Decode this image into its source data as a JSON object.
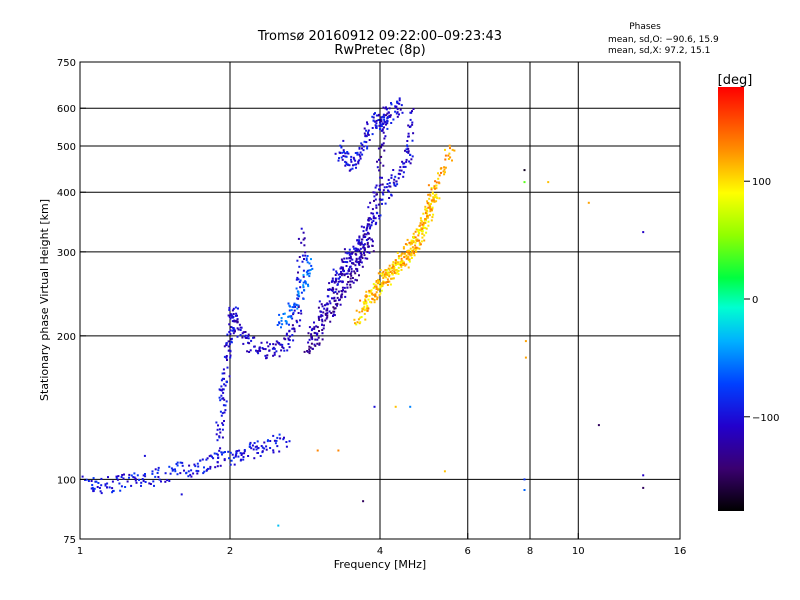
{
  "title_line1": "Tromsø 20160912 09:22:00–09:23:43",
  "title_line2": "RwPretec (8p)",
  "phases": {
    "heading": "Phases",
    "line_o": "mean, sd,O: −90.6, 15.9",
    "line_x": "mean, sd,X:  97.2, 15.1"
  },
  "colorbar": {
    "label": "[deg]",
    "ticks": [
      "100",
      "0",
      "−100"
    ],
    "range": [
      -180,
      180
    ]
  },
  "chart_data": {
    "type": "scatter",
    "xlabel": "Frequency [MHz]",
    "ylabel": "Stationary phase Virtual Height [km]",
    "xscale": "log2",
    "yscale": "log",
    "xlim": [
      1,
      16
    ],
    "ylim": [
      75,
      750
    ],
    "x_ticks": [
      1,
      2,
      4,
      6,
      8,
      10,
      16
    ],
    "x_tick_labels": [
      "1",
      "2",
      "4",
      "6",
      "8",
      "10",
      "16"
    ],
    "y_ticks": [
      75,
      100,
      200,
      300,
      400,
      500,
      600,
      750
    ],
    "y_tick_labels": [
      "75",
      "100",
      "200",
      "300",
      "400",
      "500",
      "600",
      "750"
    ],
    "grid": true,
    "vertical_gridlines": [
      2,
      4,
      6,
      8,
      10
    ],
    "horizontal_gridlines": [
      100,
      200,
      300,
      400,
      500,
      600
    ],
    "color_by": "phase [deg]",
    "traces": [
      {
        "phase": -95,
        "points": [
          [
            1.03,
            98
          ],
          [
            1.08,
            97
          ],
          [
            1.15,
            97
          ],
          [
            1.22,
            99
          ],
          [
            1.3,
            99
          ],
          [
            1.4,
            101
          ],
          [
            1.5,
            103
          ],
          [
            1.6,
            105
          ],
          [
            1.7,
            106
          ],
          [
            1.8,
            108
          ],
          [
            1.9,
            110
          ],
          [
            2.0,
            111
          ],
          [
            2.1,
            113
          ],
          [
            2.2,
            115
          ],
          [
            2.3,
            116
          ],
          [
            2.45,
            118
          ],
          [
            2.6,
            121
          ]
        ]
      },
      {
        "phase": -100,
        "points": [
          [
            1.9,
            120
          ],
          [
            1.92,
            135
          ],
          [
            1.94,
            150
          ],
          [
            1.96,
            165
          ],
          [
            1.98,
            185
          ],
          [
            2.0,
            200
          ],
          [
            2.02,
            218
          ],
          [
            2.05,
            225
          ]
        ]
      },
      {
        "phase": -110,
        "points": [
          [
            2.0,
            225
          ],
          [
            2.05,
            210
          ],
          [
            2.12,
            200
          ],
          [
            2.2,
            192
          ],
          [
            2.3,
            188
          ],
          [
            2.4,
            186
          ],
          [
            2.5,
            188
          ],
          [
            2.6,
            195
          ],
          [
            2.7,
            210
          ],
          [
            2.75,
            235
          ],
          [
            2.78,
            280
          ],
          [
            2.8,
            340
          ]
        ]
      },
      {
        "phase": -115,
        "points": [
          [
            2.9,
            200
          ],
          [
            3.0,
            215
          ],
          [
            3.1,
            235
          ],
          [
            3.2,
            250
          ],
          [
            3.3,
            262
          ],
          [
            3.4,
            272
          ],
          [
            3.5,
            285
          ],
          [
            3.6,
            300
          ],
          [
            3.7,
            320
          ],
          [
            3.8,
            345
          ],
          [
            3.9,
            380
          ],
          [
            4.0,
            430
          ],
          [
            4.05,
            520
          ],
          [
            4.1,
            620
          ]
        ]
      },
      {
        "phase": -125,
        "points": [
          [
            2.85,
            190
          ],
          [
            2.95,
            195
          ],
          [
            3.05,
            205
          ],
          [
            3.15,
            220
          ],
          [
            3.25,
            235
          ],
          [
            3.35,
            245
          ],
          [
            3.45,
            255
          ],
          [
            3.55,
            270
          ],
          [
            3.65,
            285
          ],
          [
            3.75,
            300
          ],
          [
            3.85,
            315
          ]
        ]
      },
      {
        "phase": -105,
        "points": [
          [
            3.2,
            250
          ],
          [
            3.35,
            280
          ],
          [
            3.5,
            300
          ],
          [
            3.65,
            310
          ],
          [
            3.8,
            330
          ],
          [
            3.95,
            360
          ],
          [
            4.1,
            400
          ],
          [
            4.25,
            420
          ],
          [
            4.4,
            440
          ],
          [
            4.55,
            470
          ],
          [
            4.6,
            520
          ],
          [
            4.65,
            600
          ]
        ]
      },
      {
        "phase": -100,
        "points": [
          [
            3.3,
            500
          ],
          [
            3.4,
            470
          ],
          [
            3.5,
            460
          ],
          [
            3.6,
            470
          ],
          [
            3.7,
            500
          ],
          [
            3.8,
            540
          ],
          [
            3.9,
            570
          ],
          [
            4.0,
            560
          ],
          [
            4.1,
            560
          ],
          [
            4.2,
            590
          ],
          [
            4.3,
            600
          ],
          [
            4.4,
            610
          ]
        ]
      },
      {
        "phase": -60,
        "points": [
          [
            2.5,
            210
          ],
          [
            2.6,
            220
          ],
          [
            2.7,
            230
          ],
          [
            2.8,
            250
          ],
          [
            2.85,
            270
          ],
          [
            2.9,
            290
          ]
        ]
      },
      {
        "phase": 100,
        "points": [
          [
            3.6,
            218
          ],
          [
            3.7,
            225
          ],
          [
            3.8,
            235
          ],
          [
            3.9,
            245
          ],
          [
            4.0,
            255
          ],
          [
            4.1,
            262
          ],
          [
            4.2,
            268
          ],
          [
            4.3,
            275
          ],
          [
            4.4,
            282
          ],
          [
            4.5,
            290
          ],
          [
            4.6,
            300
          ],
          [
            4.7,
            310
          ],
          [
            4.8,
            325
          ],
          [
            4.9,
            340
          ],
          [
            5.0,
            355
          ],
          [
            5.05,
            370
          ],
          [
            5.1,
            385
          ],
          [
            5.2,
            400
          ]
        ]
      },
      {
        "phase": 120,
        "points": [
          [
            3.7,
            230
          ],
          [
            3.85,
            245
          ],
          [
            4.0,
            262
          ],
          [
            4.15,
            270
          ],
          [
            4.3,
            280
          ],
          [
            4.45,
            292
          ],
          [
            4.6,
            305
          ],
          [
            4.75,
            320
          ],
          [
            4.9,
            345
          ],
          [
            5.0,
            380
          ],
          [
            5.2,
            420
          ],
          [
            5.4,
            460
          ],
          [
            5.6,
            490
          ]
        ]
      }
    ],
    "isolated_points": [
      [
        3.7,
        90,
        -150
      ],
      [
        3.9,
        142,
        -100
      ],
      [
        4.3,
        142,
        110
      ],
      [
        4.6,
        142,
        -50
      ],
      [
        5.4,
        104,
        110
      ],
      [
        7.8,
        100,
        -80
      ],
      [
        7.8,
        95,
        -60
      ],
      [
        7.8,
        420,
        40
      ],
      [
        7.8,
        445,
        -170
      ],
      [
        7.85,
        180,
        120
      ],
      [
        7.85,
        195,
        120
      ],
      [
        8.7,
        420,
        110
      ],
      [
        10.5,
        380,
        120
      ],
      [
        11.0,
        130,
        -150
      ],
      [
        13.5,
        330,
        -110
      ],
      [
        13.5,
        102,
        -110
      ],
      [
        13.5,
        96,
        -150
      ],
      [
        3.0,
        115,
        130
      ],
      [
        3.3,
        115,
        130
      ],
      [
        2.5,
        80,
        -30
      ],
      [
        1.6,
        93,
        -100
      ],
      [
        1.35,
        112,
        -100
      ]
    ]
  }
}
